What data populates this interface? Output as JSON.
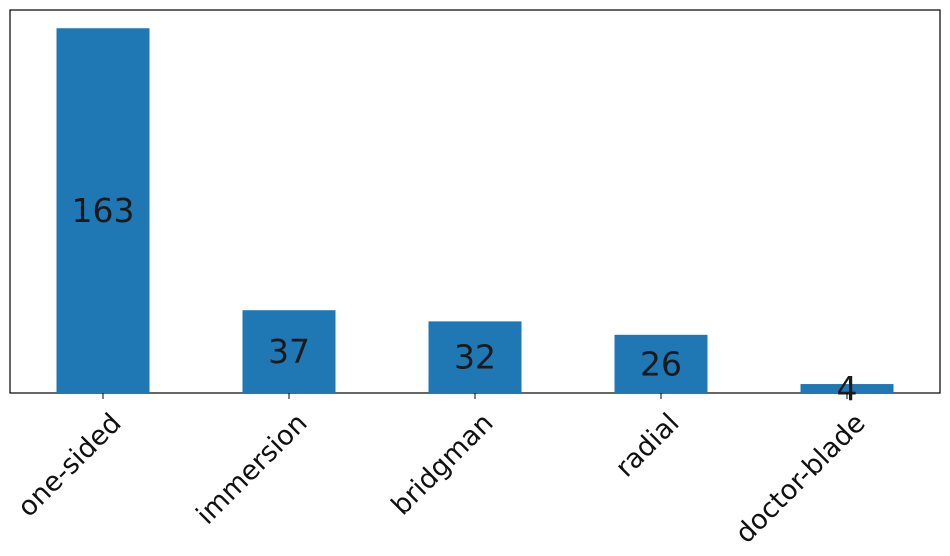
{
  "chart_data": {
    "type": "bar",
    "categories": [
      "one-sided",
      "immersion",
      "bridgman",
      "radial",
      "doctor-blade"
    ],
    "values": [
      163,
      37,
      32,
      26,
      4
    ],
    "title": "",
    "xlabel": "",
    "ylabel": "",
    "ylim": [
      0,
      171.15
    ],
    "grid": false,
    "legend": "none",
    "bar_color": "#1f77b4",
    "data_labels": true,
    "y_ticks_visible": false,
    "x_tick_rotation": 45
  }
}
